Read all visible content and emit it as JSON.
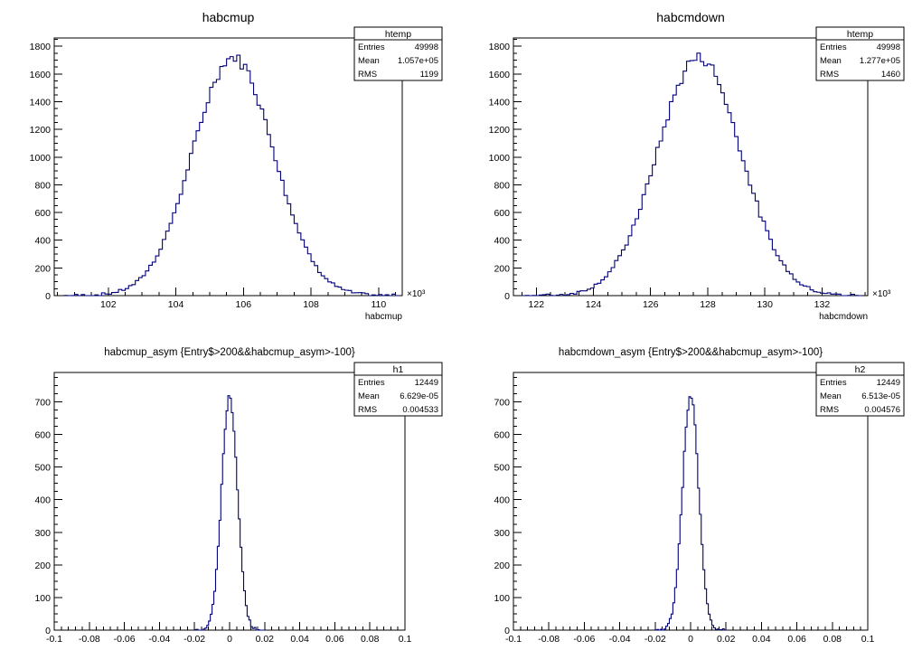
{
  "colors": {
    "histogram_line": "#00007a",
    "frame": "#000000",
    "background": "#ffffff"
  },
  "chart_data": [
    {
      "type": "histogram",
      "title": "habcmup",
      "xlabel": "habcmup",
      "x_multiplier_label": "×10³",
      "xlim": [
        100.4,
        110.7
      ],
      "ylim": [
        0,
        1860
      ],
      "x_ticks": [
        102,
        104,
        106,
        108,
        110
      ],
      "x_tick_labels": [
        "102",
        "104",
        "106",
        "108",
        "110"
      ],
      "x_minor_step": 0.5,
      "y_ticks": [
        0,
        200,
        400,
        600,
        800,
        1000,
        1200,
        1400,
        1600,
        1800
      ],
      "y_tick_labels": [
        "0",
        "200",
        "400",
        "600",
        "800",
        "1000",
        "1200",
        "1400",
        "1600",
        "1800"
      ],
      "y_minor_step": 50,
      "distribution": {
        "mean": 105.7,
        "rms": 1.199,
        "peak": 1720,
        "bin_width": 0.1,
        "range": [
          100.7,
          110.6
        ]
      },
      "stats": {
        "name": "htemp",
        "rows": [
          {
            "label": "Entries",
            "value": "49998"
          },
          {
            "label": "Mean",
            "value": "1.057e+05"
          },
          {
            "label": "RMS",
            "value": "1199"
          }
        ]
      }
    },
    {
      "type": "histogram",
      "title": "habcmdown",
      "xlabel": "habcmdown",
      "x_multiplier_label": "×10³",
      "xlim": [
        121.2,
        133.6
      ],
      "ylim": [
        0,
        1860
      ],
      "x_ticks": [
        122,
        124,
        126,
        128,
        130,
        132
      ],
      "x_tick_labels": [
        "122",
        "124",
        "126",
        "128",
        "130",
        "132"
      ],
      "x_minor_step": 0.5,
      "y_ticks": [
        0,
        200,
        400,
        600,
        800,
        1000,
        1200,
        1400,
        1600,
        1800
      ],
      "y_tick_labels": [
        "0",
        "200",
        "400",
        "600",
        "800",
        "1000",
        "1200",
        "1400",
        "1600",
        "1800"
      ],
      "y_minor_step": 50,
      "distribution": {
        "mean": 127.7,
        "rms": 1.46,
        "peak": 1720,
        "bin_width": 0.12,
        "range": [
          121.5,
          133.3
        ]
      },
      "stats": {
        "name": "htemp",
        "rows": [
          {
            "label": "Entries",
            "value": "49998"
          },
          {
            "label": "Mean",
            "value": "1.277e+05"
          },
          {
            "label": "RMS",
            "value": "1460"
          }
        ]
      }
    },
    {
      "type": "histogram",
      "title": "habcmup_asym {Entry$>200&&habcmup_asym>-100}",
      "xlabel": "",
      "x_multiplier_label": "",
      "xlim": [
        -0.1,
        0.1
      ],
      "ylim": [
        0,
        790
      ],
      "x_ticks": [
        -0.1,
        -0.08,
        -0.06,
        -0.04,
        -0.02,
        0,
        0.02,
        0.04,
        0.06,
        0.08,
        0.1
      ],
      "x_tick_labels": [
        "-0.1",
        "-0.08",
        "-0.06",
        "-0.04",
        "-0.02",
        "0",
        "0.02",
        "0.04",
        "0.06",
        "0.08",
        "0.1"
      ],
      "x_minor_step": 0.004,
      "y_ticks": [
        0,
        100,
        200,
        300,
        400,
        500,
        600,
        700
      ],
      "y_tick_labels": [
        "0",
        "100",
        "200",
        "300",
        "400",
        "500",
        "600",
        "700"
      ],
      "y_minor_step": 25,
      "distribution": {
        "mean": 0.0,
        "rms": 0.0045,
        "peak": 720,
        "bin_width": 0.001,
        "range": [
          -0.02,
          0.02
        ]
      },
      "stats": {
        "name": "h1",
        "rows": [
          {
            "label": "Entries",
            "value": "12449"
          },
          {
            "label": "Mean",
            "value": "6.629e-05"
          },
          {
            "label": "RMS",
            "value": "0.004533"
          }
        ]
      }
    },
    {
      "type": "histogram",
      "title": "habcmdown_asym {Entry$>200&&habcmup_asym>-100}",
      "xlabel": "",
      "x_multiplier_label": "",
      "xlim": [
        -0.1,
        0.1
      ],
      "ylim": [
        0,
        790
      ],
      "x_ticks": [
        -0.1,
        -0.08,
        -0.06,
        -0.04,
        -0.02,
        0,
        0.02,
        0.04,
        0.06,
        0.08,
        0.1
      ],
      "x_tick_labels": [
        "-0.1",
        "-0.08",
        "-0.06",
        "-0.04",
        "-0.02",
        "0",
        "0.02",
        "0.04",
        "0.06",
        "0.08",
        "0.1"
      ],
      "x_minor_step": 0.004,
      "y_ticks": [
        0,
        100,
        200,
        300,
        400,
        500,
        600,
        700
      ],
      "y_tick_labels": [
        "0",
        "100",
        "200",
        "300",
        "400",
        "500",
        "600",
        "700"
      ],
      "y_minor_step": 25,
      "distribution": {
        "mean": 0.0,
        "rms": 0.0046,
        "peak": 715,
        "bin_width": 0.001,
        "range": [
          -0.02,
          0.02
        ]
      },
      "stats": {
        "name": "h2",
        "rows": [
          {
            "label": "Entries",
            "value": "12449"
          },
          {
            "label": "Mean",
            "value": "6.513e-05"
          },
          {
            "label": "RMS",
            "value": "0.004576"
          }
        ]
      }
    }
  ]
}
